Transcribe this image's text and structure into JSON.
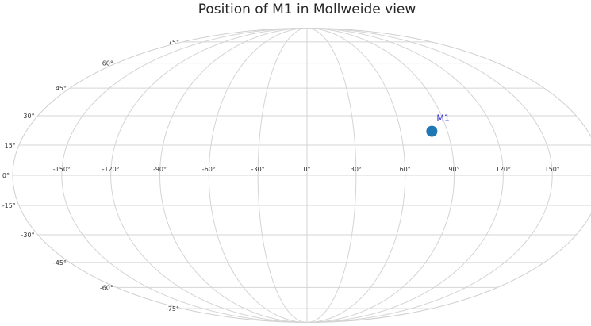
{
  "chart_data": {
    "type": "scatter",
    "projection": "mollweide",
    "title": "Position of M1 in Mollweide view",
    "grid": true,
    "lon_ticks": [
      -150,
      -120,
      -90,
      -60,
      -30,
      0,
      30,
      60,
      90,
      120,
      150
    ],
    "lon_tick_labels": [
      "-150°",
      "-120°",
      "-90°",
      "-60°",
      "-30°",
      "0°",
      "30°",
      "60°",
      "90°",
      "120°",
      "150°"
    ],
    "lat_ticks": [
      -75,
      -60,
      -45,
      -30,
      -15,
      0,
      15,
      30,
      45,
      60,
      75
    ],
    "lat_tick_labels": [
      "-75°",
      "-60°",
      "-45°",
      "-30°",
      "-15°",
      "0°",
      "15°",
      "30°",
      "45°",
      "60°",
      "75°"
    ],
    "points": [
      {
        "label": "M1",
        "lon": 80,
        "lat": 22,
        "color": "#1f77b4",
        "label_color": "#3333cc"
      }
    ]
  }
}
